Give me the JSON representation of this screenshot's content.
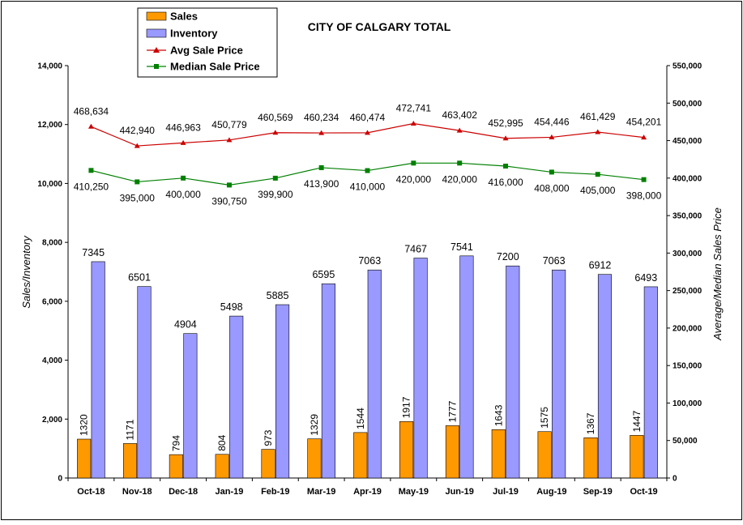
{
  "chart_data": {
    "type": "bar",
    "title": "CITY OF CALGARY TOTAL",
    "ylabel": "Sales/Inventory",
    "y2label": "Average/Median Sales Price",
    "xlabel": "",
    "categories": [
      "Oct-18",
      "Nov-18",
      "Dec-18",
      "Jan-19",
      "Feb-19",
      "Mar-19",
      "Apr-19",
      "May-19",
      "Jun-19",
      "Jul-19",
      "Aug-19",
      "Sep-19",
      "Oct-19"
    ],
    "ylim": [
      0,
      14000
    ],
    "y_ticks": [
      0,
      2000,
      4000,
      6000,
      8000,
      10000,
      12000,
      14000
    ],
    "y_tick_labels": [
      "0",
      "2,000",
      "4,000",
      "6,000",
      "8,000",
      "10,000",
      "12,000",
      "14,000"
    ],
    "y2lim": [
      0,
      550000
    ],
    "y2_ticks": [
      0,
      50000,
      100000,
      150000,
      200000,
      250000,
      300000,
      350000,
      400000,
      450000,
      500000,
      550000
    ],
    "y2_tick_labels": [
      "0",
      "50,000",
      "100,000",
      "150,000",
      "200,000",
      "250,000",
      "300,000",
      "350,000",
      "400,000",
      "450,000",
      "500,000",
      "550,000"
    ],
    "grid": false,
    "legend_position": "top-left",
    "series": [
      {
        "name": "Sales",
        "kind": "bar",
        "axis": "left",
        "color": "#FF9900",
        "values": [
          1320,
          1171,
          794,
          804,
          973,
          1329,
          1544,
          1917,
          1777,
          1643,
          1575,
          1367,
          1447
        ],
        "labels": [
          "1320",
          "1171",
          "794",
          "804",
          "973",
          "1329",
          "1544",
          "1917",
          "1777",
          "1643",
          "1575",
          "1367",
          "1447"
        ]
      },
      {
        "name": "Inventory",
        "kind": "bar",
        "axis": "left",
        "color": "#9999FF",
        "values": [
          7345,
          6501,
          4904,
          5498,
          5885,
          6595,
          7063,
          7467,
          7541,
          7200,
          7063,
          6912,
          6493
        ],
        "labels": [
          "7345",
          "6501",
          "4904",
          "5498",
          "5885",
          "6595",
          "7063",
          "7467",
          "7541",
          "7200",
          "7063",
          "6912",
          "6493"
        ]
      },
      {
        "name": "Avg Sale Price",
        "kind": "line",
        "axis": "right",
        "color": "#CC0000",
        "marker": "triangle",
        "values": [
          468634,
          442940,
          446963,
          450779,
          460569,
          460234,
          460474,
          472741,
          463402,
          452995,
          454446,
          461429,
          454201
        ],
        "labels": [
          "468,634",
          "442,940",
          "446,963",
          "450,779",
          "460,569",
          "460,234",
          "460,474",
          "472,741",
          "463,402",
          "452,995",
          "454,446",
          "461,429",
          "454,201"
        ]
      },
      {
        "name": "Median Sale Price",
        "kind": "line",
        "axis": "right",
        "color": "#008000",
        "marker": "square",
        "values": [
          410250,
          395000,
          400000,
          390750,
          399900,
          413900,
          410000,
          420000,
          420000,
          416000,
          408000,
          405000,
          398000
        ],
        "labels": [
          "410,250",
          "395,000",
          "400,000",
          "390,750",
          "399,900",
          "413,900",
          "410,000",
          "420,000",
          "420,000",
          "416,000",
          "408,000",
          "405,000",
          "398,000"
        ]
      }
    ]
  }
}
